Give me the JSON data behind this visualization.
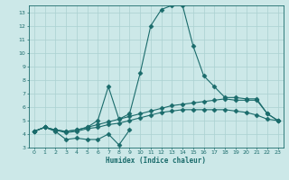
{
  "xlabel": "Humidex (Indice chaleur)",
  "xlim": [
    -0.5,
    23.5
  ],
  "ylim": [
    3,
    13.5
  ],
  "xticks": [
    0,
    1,
    2,
    3,
    4,
    5,
    6,
    7,
    8,
    9,
    10,
    11,
    12,
    13,
    14,
    15,
    16,
    17,
    18,
    19,
    20,
    21,
    22,
    23
  ],
  "yticks": [
    3,
    4,
    5,
    6,
    7,
    8,
    9,
    10,
    11,
    12,
    13
  ],
  "bg_color": "#cce8e8",
  "grid_color": "#aad0d0",
  "line_color": "#1a6b6b",
  "peak_x": [
    0,
    1,
    2,
    3,
    4,
    5,
    6,
    7,
    8,
    9,
    10,
    11,
    12,
    13,
    14,
    15,
    16,
    17,
    18,
    19,
    20,
    21,
    22,
    23
  ],
  "peak_y": [
    4.2,
    4.5,
    4.3,
    4.2,
    4.3,
    4.5,
    5.0,
    7.5,
    5.1,
    5.5,
    8.5,
    12.0,
    13.2,
    13.5,
    13.5,
    10.5,
    8.3,
    7.5,
    6.7,
    6.7,
    6.6,
    6.6,
    5.5,
    5.0
  ],
  "mid_x": [
    0,
    1,
    2,
    3,
    4,
    5,
    6,
    7,
    8,
    9,
    10,
    11,
    12,
    13,
    14,
    15,
    16,
    17,
    18,
    19,
    20,
    21,
    22,
    23
  ],
  "mid_y": [
    4.2,
    4.5,
    4.3,
    4.2,
    4.3,
    4.5,
    4.7,
    4.9,
    5.1,
    5.3,
    5.5,
    5.7,
    5.9,
    6.1,
    6.2,
    6.3,
    6.4,
    6.5,
    6.6,
    6.5,
    6.5,
    6.5,
    5.5,
    5.0
  ],
  "low_x": [
    0,
    1,
    2,
    3,
    4,
    5,
    6,
    7,
    8,
    9,
    10,
    11,
    12,
    13,
    14,
    15,
    16,
    17,
    18,
    19,
    20,
    21,
    22,
    23
  ],
  "low_y": [
    4.2,
    4.5,
    4.3,
    4.1,
    4.2,
    4.4,
    4.5,
    4.7,
    4.8,
    5.0,
    5.2,
    5.4,
    5.6,
    5.7,
    5.8,
    5.8,
    5.8,
    5.8,
    5.8,
    5.7,
    5.6,
    5.4,
    5.1,
    5.0
  ],
  "spiky_x": [
    0,
    1,
    2,
    3,
    4,
    5,
    6,
    7,
    8,
    9
  ],
  "spiky_y": [
    4.2,
    4.5,
    4.2,
    3.6,
    3.7,
    3.6,
    3.6,
    4.0,
    3.2,
    4.3
  ]
}
